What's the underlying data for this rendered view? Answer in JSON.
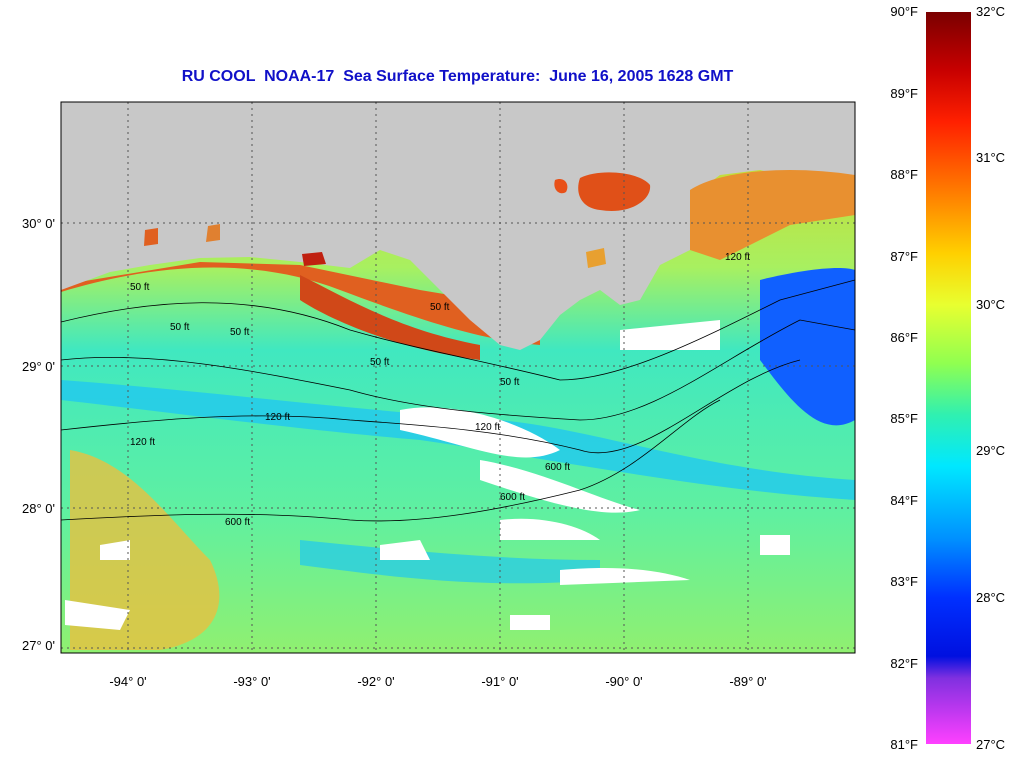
{
  "title": "RU COOL  NOAA-17  Sea Surface Temperature:  June 16, 2005 1628 GMT",
  "lon_labels": [
    "-94° 0'",
    "-93° 0'",
    "-92° 0'",
    "-91° 0'",
    "-90° 0'",
    "-89° 0'"
  ],
  "lat_labels": [
    "30° 0'",
    "29° 0'",
    "28° 0'",
    "27° 0'"
  ],
  "contour_labels": [
    "50 ft",
    "50 ft",
    "50 ft",
    "50 ft",
    "50 ft",
    "50 ft",
    "120 ft",
    "120 ft",
    "120 ft",
    "120 ft",
    "600 ft",
    "600 ft",
    "600 ft"
  ],
  "colorbar": {
    "f_labels": [
      "90°F",
      "89°F",
      "88°F",
      "87°F",
      "86°F",
      "85°F",
      "84°F",
      "83°F",
      "82°F",
      "81°F"
    ],
    "c_labels": [
      "32°C",
      "31°C",
      "30°C",
      "29°C",
      "28°C",
      "27°C"
    ]
  },
  "colors": {
    "land": "#c8c8c8",
    "cloud": "#ffffff",
    "title": "#1010c8"
  }
}
